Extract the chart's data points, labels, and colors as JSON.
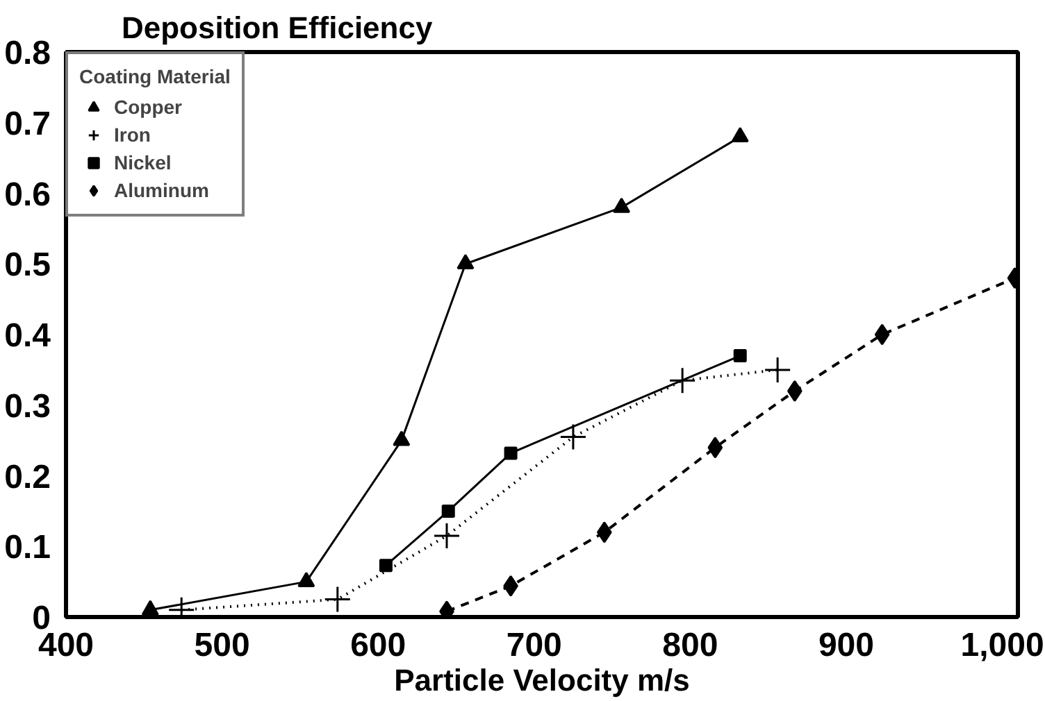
{
  "chart_data": {
    "type": "line",
    "title": "Deposition Efficiency",
    "xlabel": "Particle Velocity m/s",
    "legend_title": "Coating Material",
    "legend": "top left",
    "grid": false,
    "xlim": [
      400,
      1010
    ],
    "xticks": [
      400,
      500,
      600,
      700,
      800,
      900,
      {
        "value": 1000,
        "label": "1,000"
      }
    ],
    "ylim": [
      0,
      0.8
    ],
    "yticks": [
      0,
      0.1,
      0.2,
      0.3,
      0.4,
      0.5,
      0.6,
      0.7,
      0.8
    ],
    "series": [
      {
        "name": "Copper",
        "color": "#000000",
        "marker": "triangle",
        "line_style": "solid",
        "x": [
          454,
          554,
          615,
          656,
          756,
          832
        ],
        "values": [
          0.01,
          0.05,
          0.25,
          0.5,
          0.58,
          0.68
        ]
      },
      {
        "name": "Iron",
        "color": "#000000",
        "marker": "cross",
        "line_style": "dotted",
        "x": [
          474,
          574,
          644,
          725,
          795,
          856
        ],
        "values": [
          0.01,
          0.025,
          0.115,
          0.255,
          0.335,
          0.35
        ]
      },
      {
        "name": "Nickel",
        "color": "#000000",
        "marker": "square",
        "line_style": "solid",
        "x": [
          605,
          645,
          685,
          832
        ],
        "values": [
          0.073,
          0.15,
          0.232,
          0.37
        ]
      },
      {
        "name": "Aluminum",
        "color": "#000000",
        "marker": "diamond",
        "line_style": "dashed",
        "x": [
          644,
          685,
          745,
          816,
          867,
          923,
          1008
        ],
        "values": [
          0.008,
          0.044,
          0.12,
          0.24,
          0.32,
          0.4,
          0.48
        ]
      }
    ]
  }
}
